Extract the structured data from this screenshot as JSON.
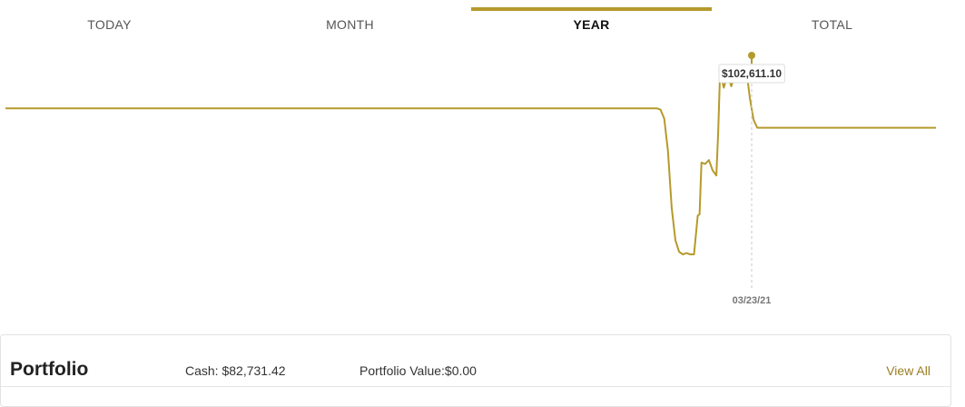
{
  "tabs": [
    {
      "label": "TODAY",
      "active": false
    },
    {
      "label": "MONTH",
      "active": false
    },
    {
      "label": "YEAR",
      "active": true
    },
    {
      "label": "TOTAL",
      "active": false
    }
  ],
  "chart_data": {
    "type": "line",
    "tooltip": {
      "value": "$102,611.10",
      "date": "03/23/21"
    },
    "series": [
      {
        "color": "#b59a2c",
        "x": [
          0,
          0.05,
          0.1,
          0.15,
          0.2,
          0.25,
          0.3,
          0.35,
          0.4,
          0.45,
          0.5,
          0.55,
          0.6,
          0.65,
          0.68,
          0.7,
          0.704,
          0.708,
          0.712,
          0.716,
          0.72,
          0.724,
          0.728,
          0.732,
          0.736,
          0.74,
          0.744,
          0.746,
          0.748,
          0.752,
          0.756,
          0.76,
          0.764,
          0.766,
          0.768,
          0.772,
          0.776,
          0.78,
          0.784,
          0.788,
          0.792,
          0.796,
          0.8,
          0.804,
          0.808,
          0.812,
          1.0
        ],
        "values": [
          102300,
          102300,
          102300,
          102300,
          102300,
          102300,
          102300,
          102300,
          102300,
          102300,
          102300,
          102300,
          102300,
          102300,
          102300,
          102300,
          102290,
          102220,
          101970,
          101530,
          101280,
          101190,
          101170,
          101180,
          101170,
          101170,
          101470,
          101480,
          101880,
          101870,
          101900,
          101820,
          101780,
          102110,
          102580,
          102460,
          102560,
          102470,
          102560,
          102620,
          102560,
          102610,
          102380,
          102210,
          102150,
          102150,
          102150
        ]
      }
    ]
  },
  "colors": {
    "accent": "#b59a2c"
  },
  "portfolio": {
    "title": "Portfolio",
    "cash": "Cash: $82,731.42",
    "value": "Portfolio Value:$0.00",
    "view_all": "View All"
  }
}
